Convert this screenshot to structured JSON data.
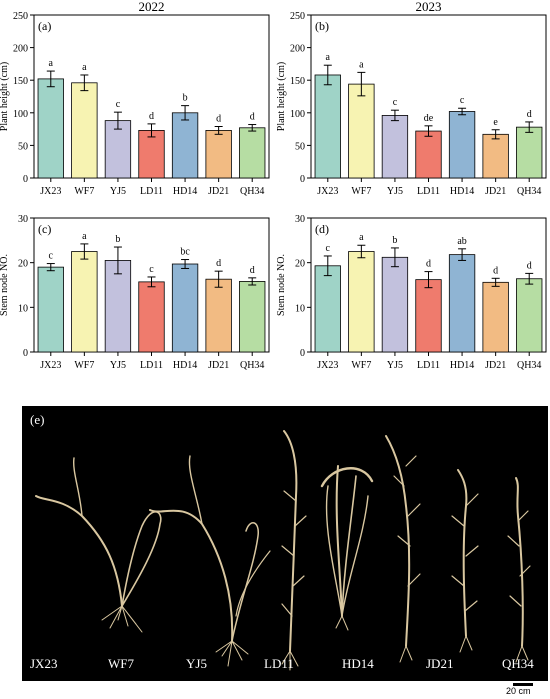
{
  "colors": {
    "JX23": "#9fd3c7",
    "WF7": "#f7f3b2",
    "YJ5": "#c2c1dd",
    "LD11": "#ef7b6d",
    "HD14": "#8fb4d3",
    "JD21": "#f2bb83",
    "QH34": "#b6dda3",
    "photo_background": "#000000",
    "plant": "#d9c7a0"
  },
  "chart_data": [
    {
      "panel": "(a)",
      "type": "bar",
      "title": "2022",
      "ylabel": "Plant height (cm)",
      "xlabel": "",
      "ylim": [
        0,
        250
      ],
      "yticks": [
        0,
        50,
        100,
        150,
        200,
        250
      ],
      "categories": [
        "JX23",
        "WF7",
        "YJ5",
        "LD11",
        "HD14",
        "JD21",
        "QH34"
      ],
      "values": [
        152,
        146,
        88,
        73,
        100,
        73,
        77
      ],
      "errors": [
        12,
        12,
        13,
        10,
        11,
        6,
        5
      ],
      "letters": [
        "a",
        "a",
        "c",
        "d",
        "b",
        "d",
        "d"
      ]
    },
    {
      "panel": "(b)",
      "type": "bar",
      "title": "2023",
      "ylabel": "Plant height (cm)",
      "xlabel": "",
      "ylim": [
        0,
        250
      ],
      "yticks": [
        0,
        50,
        100,
        150,
        200,
        250
      ],
      "categories": [
        "JX23",
        "WF7",
        "YJ5",
        "LD11",
        "HD14",
        "JD21",
        "QH34"
      ],
      "values": [
        158,
        144,
        96,
        72,
        102,
        67,
        78
      ],
      "errors": [
        15,
        18,
        8,
        8,
        5,
        7,
        8
      ],
      "letters": [
        "a",
        "a",
        "c",
        "de",
        "c",
        "e",
        "d"
      ]
    },
    {
      "panel": "(c)",
      "type": "bar",
      "title": "",
      "ylabel": "Stem node NO.",
      "xlabel": "",
      "ylim": [
        0,
        30
      ],
      "yticks": [
        0,
        10,
        20,
        30
      ],
      "categories": [
        "JX23",
        "WF7",
        "YJ5",
        "LD11",
        "HD14",
        "JD21",
        "QH34"
      ],
      "values": [
        19.0,
        22.5,
        20.5,
        15.7,
        19.7,
        16.3,
        15.8
      ],
      "errors": [
        0.8,
        1.7,
        3.0,
        1.1,
        1.0,
        1.8,
        0.8
      ],
      "letters": [
        "c",
        "a",
        "b",
        "c",
        "bc",
        "d",
        "d"
      ]
    },
    {
      "panel": "(d)",
      "type": "bar",
      "title": "",
      "ylabel": "Stem node NO.",
      "xlabel": "",
      "ylim": [
        0,
        30
      ],
      "yticks": [
        0,
        10,
        20,
        30
      ],
      "categories": [
        "JX23",
        "WF7",
        "YJ5",
        "LD11",
        "HD14",
        "JD21",
        "QH34"
      ],
      "values": [
        19.3,
        22.5,
        21.2,
        16.2,
        21.8,
        15.6,
        16.4
      ],
      "errors": [
        2.2,
        1.4,
        2.1,
        1.8,
        1.3,
        0.9,
        1.2
      ],
      "letters": [
        "c",
        "a",
        "b",
        "d",
        "ab",
        "d",
        "d"
      ]
    }
  ],
  "photo": {
    "panel_label": "(e)",
    "plant_labels": [
      "JX23",
      "WF7",
      "YJ5",
      "LD11",
      "HD14",
      "JD21",
      "QH34"
    ],
    "scale_bar_label": "20 cm"
  }
}
